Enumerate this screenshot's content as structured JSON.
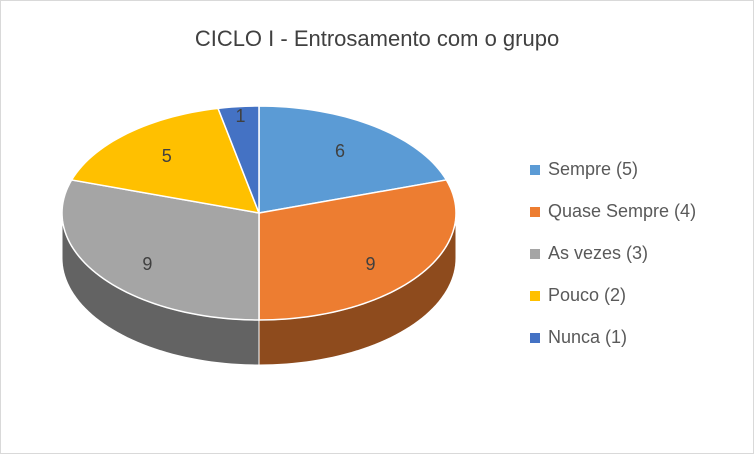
{
  "chart_data": {
    "type": "pie",
    "title": "CICLO I - Entrosamento com o grupo",
    "categories": [
      "Sempre (5)",
      "Quase Sempre (4)",
      "As vezes (3)",
      "Pouco (2)",
      "Nunca (1)"
    ],
    "values": [
      6,
      9,
      9,
      5,
      1
    ],
    "colors": [
      "#5b9bd5",
      "#ed7d31",
      "#a5a5a5",
      "#ffc000",
      "#4472c4"
    ],
    "legend": "right"
  }
}
